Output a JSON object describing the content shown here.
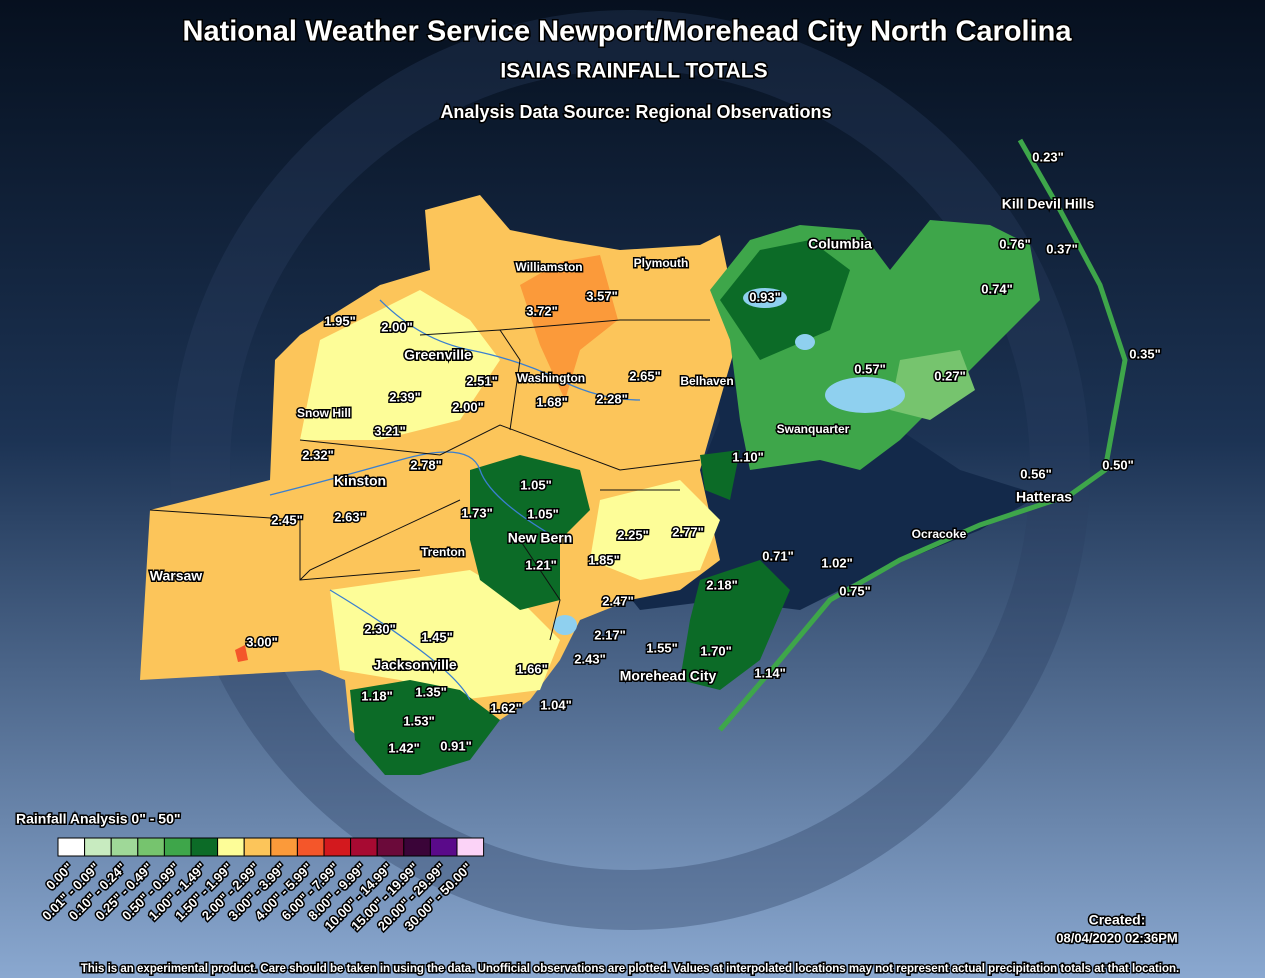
{
  "header": {
    "title": "National Weather Service Newport/Morehead City North Carolina",
    "subtitle": "ISAIAS RAINFALL TOTALS",
    "source": "Analysis Data Source: Regional Observations"
  },
  "places": [
    "Kill Devil Hills",
    "Columbia",
    "Williamston",
    "Plymouth",
    "Greenville",
    "Washington",
    "Belhaven",
    "Snow Hill",
    "Swanquarter",
    "Kinston",
    "Hatteras",
    "Ocracoke",
    "New Bern",
    "Trenton",
    "Warsaw",
    "Jacksonville",
    "Morehead City"
  ],
  "observations": [
    "0.23\"",
    "0.76\"",
    "0.37\"",
    "0.74\"",
    "0.35\"",
    "0.27\"",
    "0.57\"",
    "0.93\"",
    "3.72\"",
    "3.57\"",
    "1.95\"",
    "2.00\"",
    "2.51\"",
    "2.65\"",
    "2.39\"",
    "2.00\"",
    "1.68\"",
    "2.28\"",
    "3.21\"",
    "2.32\"",
    "2.78\"",
    "1.10\"",
    "0.56\"",
    "0.50\"",
    "1.05\"",
    "1.73\"",
    "1.05\"",
    "2.45\"",
    "2.63\"",
    "2.25\"",
    "2.77\"",
    "1.85\"",
    "1.21\"",
    "0.71\"",
    "1.02\"",
    "0.75\"",
    "2.18\"",
    "2.47\"",
    "2.30\"",
    "1.45\"",
    "2.17\"",
    "3.00\"",
    "1.55\"",
    "1.70\"",
    "2.43\"",
    "1.66\"",
    "1.14\"",
    "1.18\"",
    "1.35\"",
    "1.53\"",
    "1.62\"",
    "1.04\"",
    "1.42\"",
    "0.91\""
  ],
  "legend": {
    "title": "Rainfall Analysis 0\" - 50\"",
    "colors": [
      "#ffffff",
      "#c8ebc0",
      "#9fd898",
      "#76c46e",
      "#3ea64a",
      "#0c6b27",
      "#fdfd98",
      "#fcc55a",
      "#fb9a3a",
      "#f4562a",
      "#d3191e",
      "#a70a32",
      "#6b0a3a",
      "#3a0438",
      "#5a0a8a",
      "#fbd3f7"
    ],
    "labels": [
      "0.00\"",
      "0.01\" - 0.09\"",
      "0.10\" - 0.24\"",
      "0.25\" - 0.49\"",
      "0.50\" - 0.99\"",
      "1.00\" - 1.49\"",
      "1.50\" - 1.99\"",
      "2.00\" - 2.99\"",
      "3.00\" - 3.99\"",
      "4.00\" - 5.99\"",
      "6.00\" - 7.99\"",
      "8.00\" - 9.99\"",
      "10.00\" - 14.99\"",
      "15.00\" - 19.99\"",
      "20.00\" - 29.99\"",
      "30.00\" - 50.00\""
    ]
  },
  "created": {
    "label": "Created:",
    "timestamp": "08/04/2020 02:36PM"
  },
  "footer": "This is an experimental product. Care should be taken in using the data. Unofficial observations are plotted. Values at interpolated locations may not represent actual precipitation totals at that location."
}
